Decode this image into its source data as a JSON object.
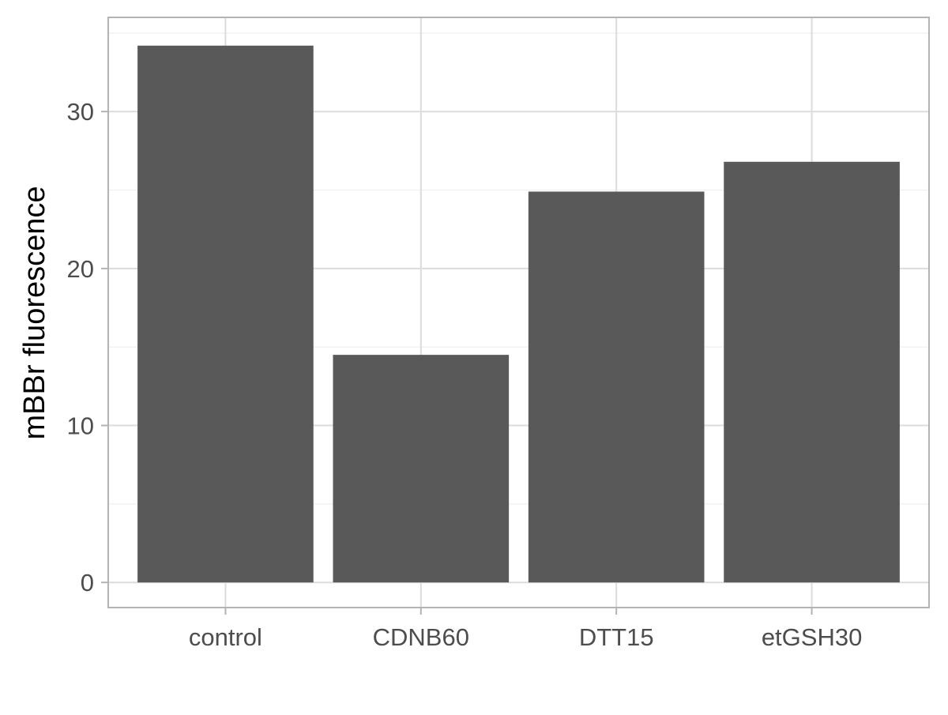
{
  "chart_data": {
    "type": "bar",
    "categories": [
      "control",
      "CDNB60",
      "DTT15",
      "etGSH30"
    ],
    "values": [
      34.2,
      14.5,
      24.9,
      26.8
    ],
    "title": "",
    "xlabel": "",
    "ylabel": "mBBr fluorescence",
    "ylim": [
      -1.6,
      36
    ]
  },
  "y_ticks": [
    0,
    10,
    20,
    30
  ],
  "y_minor_ticks": [
    5,
    15,
    25,
    35
  ],
  "y_tick_labels": [
    "0",
    "10",
    "20",
    "30"
  ],
  "grid": true,
  "legend": "none",
  "colors": {
    "bar": "#595959",
    "panel_border": "#b3b3b3",
    "grid_major": "#dcdcdc",
    "grid_minor": "#efefef",
    "tick_label": "#4d4d4d",
    "axis_title": "#000000"
  }
}
